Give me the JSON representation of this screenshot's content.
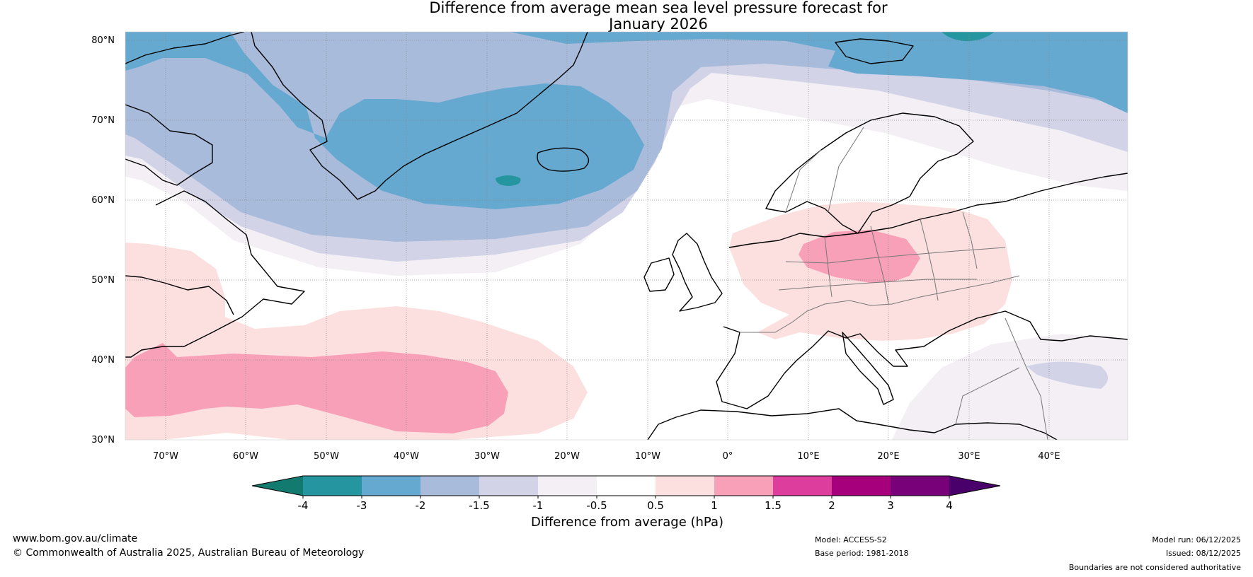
{
  "title": {
    "line1": "Difference from average mean sea level pressure forecast for",
    "line2": "January 2026"
  },
  "map": {
    "lat_labels": [
      "80°N",
      "70°N",
      "60°N",
      "50°N",
      "40°N",
      "30°N"
    ],
    "lon_labels": [
      "70°W",
      "60°W",
      "50°W",
      "40°W",
      "30°W",
      "20°W",
      "10°W",
      "0°",
      "10°E",
      "20°E",
      "30°E",
      "40°E"
    ]
  },
  "colorbar": {
    "label": "Difference from average (hPa)",
    "tick_labels": [
      "-4",
      "-3",
      "-2",
      "-1.5",
      "-1",
      "-0.5",
      "0.5",
      "1",
      "1.5",
      "2",
      "3",
      "4"
    ],
    "colors": [
      "#137a70",
      "#2596a0",
      "#66a9d0",
      "#a8bbdb",
      "#d2d3e6",
      "#f3eff5",
      "#ffffff",
      "#fce0df",
      "#f9a0b9",
      "#dd3d9d",
      "#a6007d",
      "#780079",
      "#49006a"
    ]
  },
  "footer": {
    "website": "www.bom.gov.au/climate",
    "copyright": "© Commonwealth of Australia 2025, Australian Bureau of Meteorology",
    "model": "Model: ACCESS-S2",
    "base_period": "Base period: 1981-2018",
    "model_run": "Model run: 06/12/2025",
    "issued": "Issued: 08/12/2025",
    "disclaimer": "Boundaries are not considered authoritative"
  }
}
